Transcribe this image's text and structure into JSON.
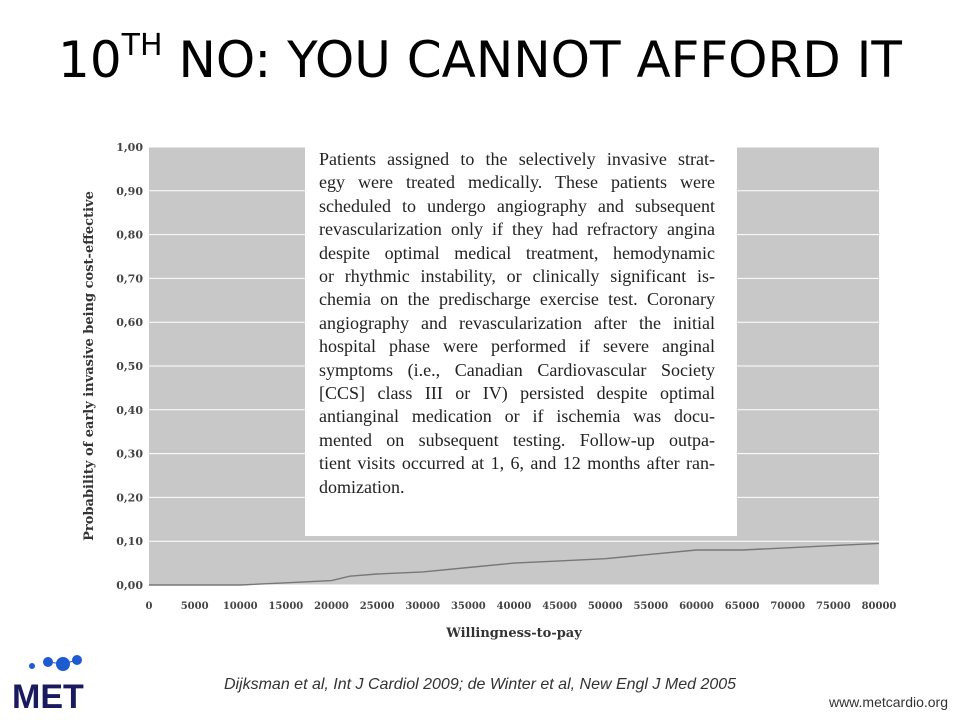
{
  "slide": {
    "title_main": "10",
    "title_sup": "TH",
    "title_rest": " NO: YOU CANNOT AFFORD IT",
    "citation": "Dijksman et al, Int J Cardiol 2009; de Winter et al, New Engl J Med 2005",
    "website": "www.metcardio.org",
    "logo_text": "MET",
    "logo_icon": "met-logo-icon",
    "colors": {
      "plot_bg": "#c8c8c8",
      "gridline": "#ffffff",
      "line": "#777777",
      "logo_blue": "#1e5bd0",
      "logo_dark": "#1a1a5e"
    }
  },
  "chart_data": {
    "type": "line",
    "title": "",
    "xlabel": "Willingness-to-pay",
    "ylabel": "Probability of early invasive being cost-effective",
    "xlim": [
      0,
      80000
    ],
    "ylim": [
      0,
      1
    ],
    "grid": "horizontal",
    "x_ticks": [
      "0",
      "5000",
      "10000",
      "15000",
      "20000",
      "25000",
      "30000",
      "35000",
      "40000",
      "45000",
      "50000",
      "55000",
      "60000",
      "65000",
      "70000",
      "75000",
      "80000"
    ],
    "y_ticks": [
      "0,00",
      "0,10",
      "0,20",
      "0,30",
      "0,40",
      "0,50",
      "0,60",
      "0,70",
      "0,80",
      "0,90",
      "1,00"
    ],
    "series": [
      {
        "x": [
          0,
          5000,
          10000,
          15000,
          20000,
          22000,
          25000,
          30000,
          35000,
          40000,
          45000,
          50000,
          55000,
          60000,
          65000,
          70000,
          75000,
          80000
        ],
        "y": [
          0.0,
          0.0,
          0.0,
          0.005,
          0.01,
          0.02,
          0.025,
          0.03,
          0.04,
          0.05,
          0.055,
          0.06,
          0.07,
          0.08,
          0.08,
          0.085,
          0.09,
          0.095
        ]
      }
    ]
  },
  "quote": {
    "lines": [
      "Patients assigned to the selectively invasive strat-",
      "egy were treated medically. These patients were",
      "scheduled to undergo angiography and subsequent",
      "revascularization only if they had refractory angina",
      "despite optimal medical treatment, hemodynamic",
      "or rhythmic instability, or clinically significant is-",
      "chemia on the predischarge exercise test. Coronary",
      "angiography and revascularization after the initial",
      "hospital phase were performed if severe anginal",
      "symptoms (i.e., Canadian Cardiovascular Society",
      "[CCS] class III or IV) persisted despite optimal",
      "antianginal medication or if ischemia was docu-",
      "mented on subsequent testing. Follow-up outpa-",
      "tient visits occurred at 1, 6, and 12 months after ran-",
      "domization."
    ]
  }
}
